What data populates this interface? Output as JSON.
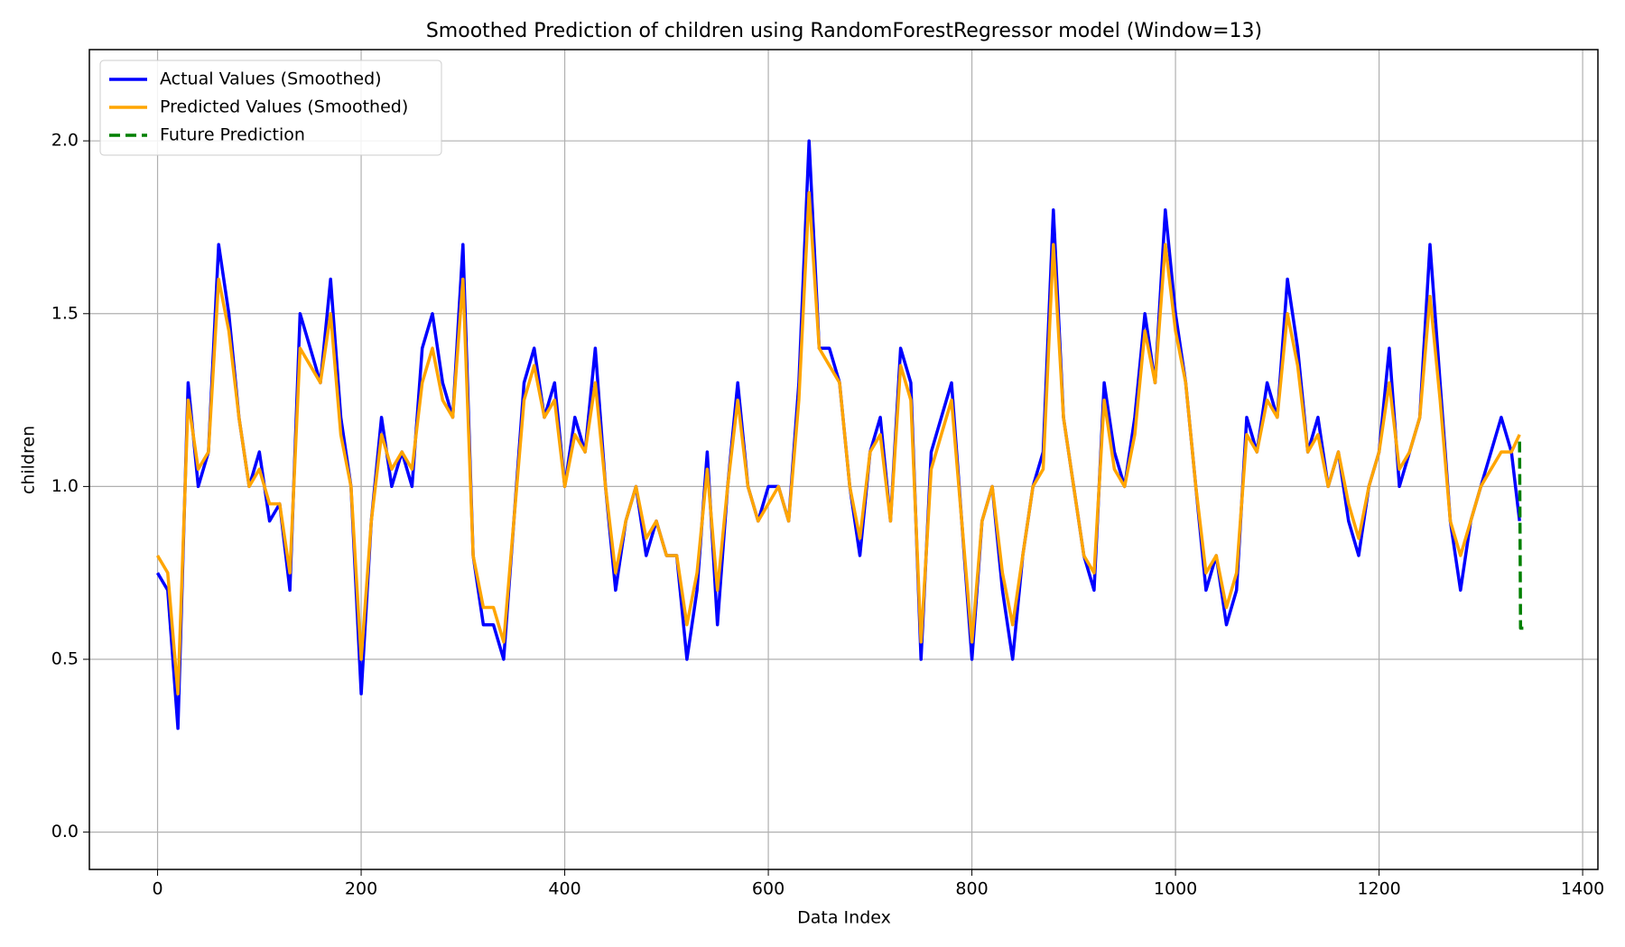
{
  "chart_data": {
    "type": "line",
    "title": "Smoothed Prediction of children using RandomForestRegressor model (Window=13)",
    "x_label": "Data Index",
    "y_label": "children",
    "x": [
      0,
      10,
      20,
      30,
      40,
      50,
      60,
      70,
      80,
      90,
      100,
      110,
      120,
      130,
      140,
      150,
      160,
      170,
      180,
      190,
      200,
      210,
      220,
      230,
      240,
      250,
      260,
      270,
      280,
      290,
      300,
      310,
      320,
      330,
      340,
      350,
      360,
      370,
      380,
      390,
      400,
      410,
      420,
      430,
      440,
      450,
      460,
      470,
      480,
      490,
      500,
      510,
      520,
      530,
      540,
      550,
      560,
      570,
      580,
      590,
      600,
      610,
      620,
      630,
      640,
      650,
      660,
      670,
      680,
      690,
      700,
      710,
      720,
      730,
      740,
      750,
      760,
      770,
      780,
      790,
      800,
      810,
      820,
      830,
      840,
      850,
      860,
      870,
      880,
      890,
      900,
      910,
      920,
      930,
      940,
      950,
      960,
      970,
      980,
      990,
      1000,
      1010,
      1020,
      1030,
      1040,
      1050,
      1060,
      1070,
      1080,
      1090,
      1100,
      1110,
      1120,
      1130,
      1140,
      1150,
      1160,
      1170,
      1180,
      1190,
      1200,
      1210,
      1220,
      1230,
      1240,
      1250,
      1260,
      1270,
      1280,
      1290,
      1300,
      1310,
      1320,
      1330,
      1338
    ],
    "series": [
      {
        "name": "Actual Values (Smoothed)",
        "color": "#0000ff",
        "values": [
          0.75,
          0.7,
          0.3,
          1.3,
          1.0,
          1.1,
          1.7,
          1.5,
          1.2,
          1.0,
          1.1,
          0.9,
          0.95,
          0.7,
          1.5,
          1.4,
          1.3,
          1.6,
          1.2,
          1.0,
          0.4,
          0.9,
          1.2,
          1.0,
          1.1,
          1.0,
          1.4,
          1.5,
          1.3,
          1.2,
          1.7,
          0.8,
          0.6,
          0.6,
          0.5,
          0.9,
          1.3,
          1.4,
          1.2,
          1.3,
          1.0,
          1.2,
          1.1,
          1.4,
          1.0,
          0.7,
          0.9,
          1.0,
          0.8,
          0.9,
          0.8,
          0.8,
          0.5,
          0.7,
          1.1,
          0.6,
          1.0,
          1.3,
          1.0,
          0.9,
          1.0,
          1.0,
          0.9,
          1.3,
          2.0,
          1.4,
          1.4,
          1.3,
          1.0,
          0.8,
          1.1,
          1.2,
          0.9,
          1.4,
          1.3,
          0.5,
          1.1,
          1.2,
          1.3,
          0.9,
          0.5,
          0.9,
          1.0,
          0.7,
          0.5,
          0.8,
          1.0,
          1.1,
          1.8,
          1.2,
          1.0,
          0.8,
          0.7,
          1.3,
          1.1,
          1.0,
          1.2,
          1.5,
          1.3,
          1.8,
          1.5,
          1.3,
          1.0,
          0.7,
          0.8,
          0.6,
          0.7,
          1.2,
          1.1,
          1.3,
          1.2,
          1.6,
          1.4,
          1.1,
          1.2,
          1.0,
          1.1,
          0.9,
          0.8,
          1.0,
          1.1,
          1.4,
          1.0,
          1.1,
          1.2,
          1.7,
          1.3,
          0.9,
          0.7,
          0.9,
          1.0,
          1.1,
          1.2,
          1.1,
          0.9
        ]
      },
      {
        "name": "Predicted Values (Smoothed)",
        "color": "#ffa500",
        "values": [
          0.8,
          0.75,
          0.4,
          1.25,
          1.05,
          1.1,
          1.6,
          1.45,
          1.2,
          1.0,
          1.05,
          0.95,
          0.95,
          0.75,
          1.4,
          1.35,
          1.3,
          1.5,
          1.15,
          1.0,
          0.5,
          0.9,
          1.15,
          1.05,
          1.1,
          1.05,
          1.3,
          1.4,
          1.25,
          1.2,
          1.6,
          0.8,
          0.65,
          0.65,
          0.55,
          0.9,
          1.25,
          1.35,
          1.2,
          1.25,
          1.0,
          1.15,
          1.1,
          1.3,
          1.0,
          0.75,
          0.9,
          1.0,
          0.85,
          0.9,
          0.8,
          0.8,
          0.6,
          0.75,
          1.05,
          0.7,
          1.0,
          1.25,
          1.0,
          0.9,
          0.95,
          1.0,
          0.9,
          1.25,
          1.85,
          1.4,
          1.35,
          1.3,
          1.0,
          0.85,
          1.1,
          1.15,
          0.9,
          1.35,
          1.25,
          0.55,
          1.05,
          1.15,
          1.25,
          0.9,
          0.55,
          0.9,
          1.0,
          0.75,
          0.6,
          0.8,
          1.0,
          1.05,
          1.7,
          1.2,
          1.0,
          0.8,
          0.75,
          1.25,
          1.05,
          1.0,
          1.15,
          1.45,
          1.3,
          1.7,
          1.45,
          1.3,
          1.0,
          0.75,
          0.8,
          0.65,
          0.75,
          1.15,
          1.1,
          1.25,
          1.2,
          1.5,
          1.35,
          1.1,
          1.15,
          1.0,
          1.1,
          0.95,
          0.85,
          1.0,
          1.1,
          1.3,
          1.05,
          1.1,
          1.2,
          1.55,
          1.25,
          0.9,
          0.8,
          0.9,
          1.0,
          1.05,
          1.1,
          1.1,
          1.15
        ]
      },
      {
        "name": "Future Prediction",
        "color": "#008000",
        "dashed": true,
        "x": [
          1338,
          1339,
          1342
        ],
        "values": [
          1.13,
          0.59,
          0.59
        ]
      }
    ],
    "xlim": [
      -67,
      1415
    ],
    "ylim": [
      -0.108,
      2.264
    ],
    "xticks": [
      0,
      200,
      400,
      600,
      800,
      1000,
      1200,
      1400
    ],
    "yticks": [
      {
        "value": 0,
        "label": "0.0"
      },
      {
        "value": 0.5,
        "label": "0.5"
      },
      {
        "value": 1,
        "label": "1.0"
      },
      {
        "value": 1.5,
        "label": "1.5"
      },
      {
        "value": 2,
        "label": "2.0"
      }
    ],
    "grid": true,
    "legend": "upper left"
  }
}
